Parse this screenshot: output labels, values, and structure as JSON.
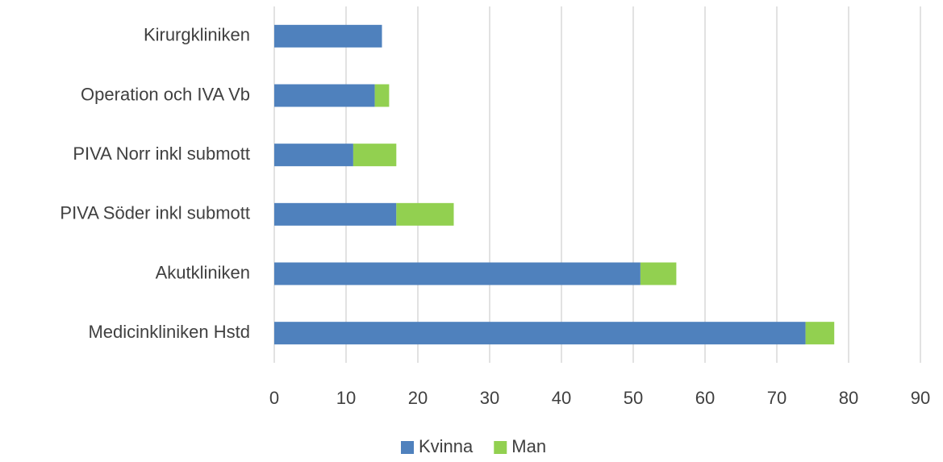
{
  "chart_data": {
    "type": "stacked_barh",
    "categories": [
      "Kirurgkliniken",
      "Operation och IVA Vb",
      "PIVA Norr inkl submott",
      "PIVA Söder inkl submott",
      "Akutkliniken",
      "Medicinkliniken Hstd"
    ],
    "series": [
      {
        "name": "Kvinna",
        "color": "#4f81bd",
        "values": [
          15,
          14,
          11,
          17,
          51,
          74
        ]
      },
      {
        "name": "Man",
        "color": "#92d050",
        "values": [
          0,
          2,
          6,
          8,
          5,
          4
        ]
      }
    ],
    "xlim": [
      0,
      90
    ],
    "xticks": [
      0,
      10,
      20,
      30,
      40,
      50,
      60,
      70,
      80,
      90
    ],
    "grid": true,
    "legend": "bottom"
  }
}
